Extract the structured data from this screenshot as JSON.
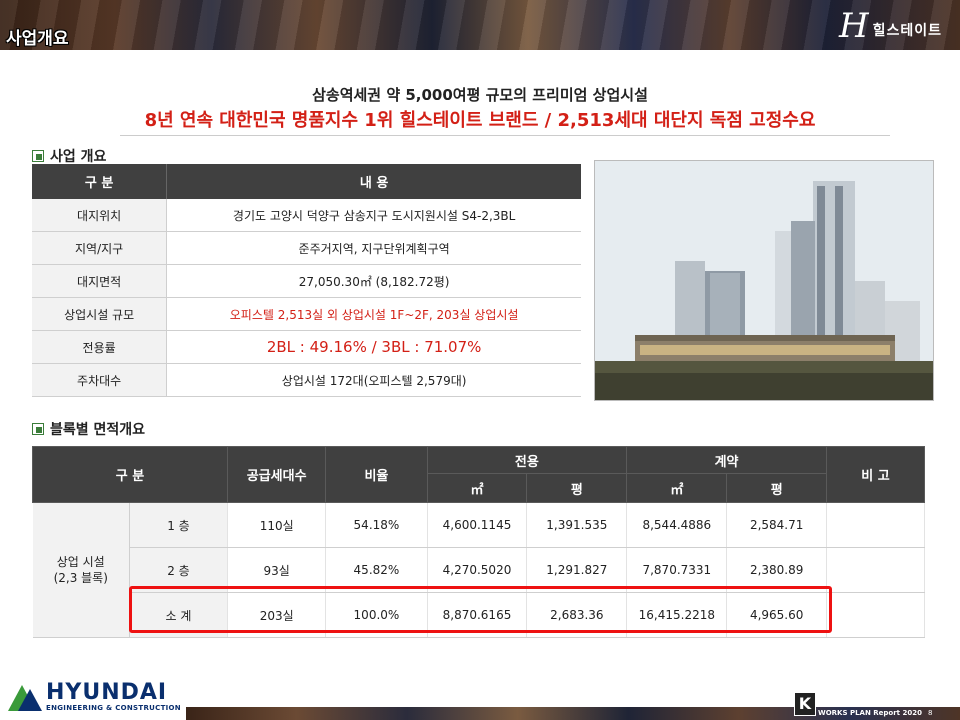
{
  "header": {
    "section_title": "사업개요",
    "brand_mark": "H",
    "brand_name": "힐스테이트"
  },
  "headline": {
    "line1": "삼송역세권 약 5,000여평 규모의 프리미엄 상업시설",
    "line2": "8년 연속 대한민국 명품지수 1위 힐스테이트 브랜드 / 2,513세대 대단지 독점 고정수요"
  },
  "overview": {
    "title": "사업 개요",
    "col_label": "구 분",
    "col_value": "내 용",
    "rows": [
      {
        "label": "대지위치",
        "value": "경기도 고양시 덕양구 삼송지구 도시지원시설 S4-2,3BL"
      },
      {
        "label": "지역/지구",
        "value": "준주거지역, 지구단위계획구역"
      },
      {
        "label": "대지면적",
        "value": "27,050.30㎡ (8,182.72평)"
      },
      {
        "label": "상업시설 규모",
        "value": "오피스텔 2,513실 외 상업시설 1F~2F, 203실 상업시설"
      },
      {
        "label": "전용률",
        "value": "2BL : 49.16% / 3BL : 71.07%"
      },
      {
        "label": "주차대수",
        "value": "상업시설 172대(오피스텔 2,579대)"
      }
    ]
  },
  "block_area": {
    "title": "블록별 면적개요",
    "headers": {
      "division": "구 분",
      "supply": "공급세대수",
      "ratio": "비율",
      "exclusive": "전용",
      "contract": "계약",
      "note": "비 고",
      "sqm": "㎡",
      "pyeong": "평"
    },
    "group_label_line1": "상업 시설",
    "group_label_line2": "(2,3  블록)",
    "rows": [
      {
        "floor": "1 층",
        "supply": "110실",
        "ratio": "54.18%",
        "ex_sqm": "4,600.1145",
        "ex_py": "1,391.535",
        "ct_sqm": "8,544.4886",
        "ct_py": "2,584.71",
        "note": ""
      },
      {
        "floor": "2 층",
        "supply": "93실",
        "ratio": "45.82%",
        "ex_sqm": "4,270.5020",
        "ex_py": "1,291.827",
        "ct_sqm": "7,870.7331",
        "ct_py": "2,380.89",
        "note": ""
      },
      {
        "floor": "소 계",
        "supply": "203실",
        "ratio": "100.0%",
        "ex_sqm": "8,870.6165",
        "ex_py": "2,683.36",
        "ct_sqm": "16,415.2218",
        "ct_py": "4,965.60",
        "note": ""
      }
    ]
  },
  "footer": {
    "company": "HYUNDAI",
    "company_sub": "ENGINEERING & CONSTRUCTION",
    "badge": "K",
    "report": "WORKS PLAN Report 2020",
    "page": "8"
  },
  "colors": {
    "accent_red": "#d32016",
    "header_dark": "#404040",
    "logo_blue": "#0a2f6e",
    "logo_green": "#3a9a3a"
  }
}
